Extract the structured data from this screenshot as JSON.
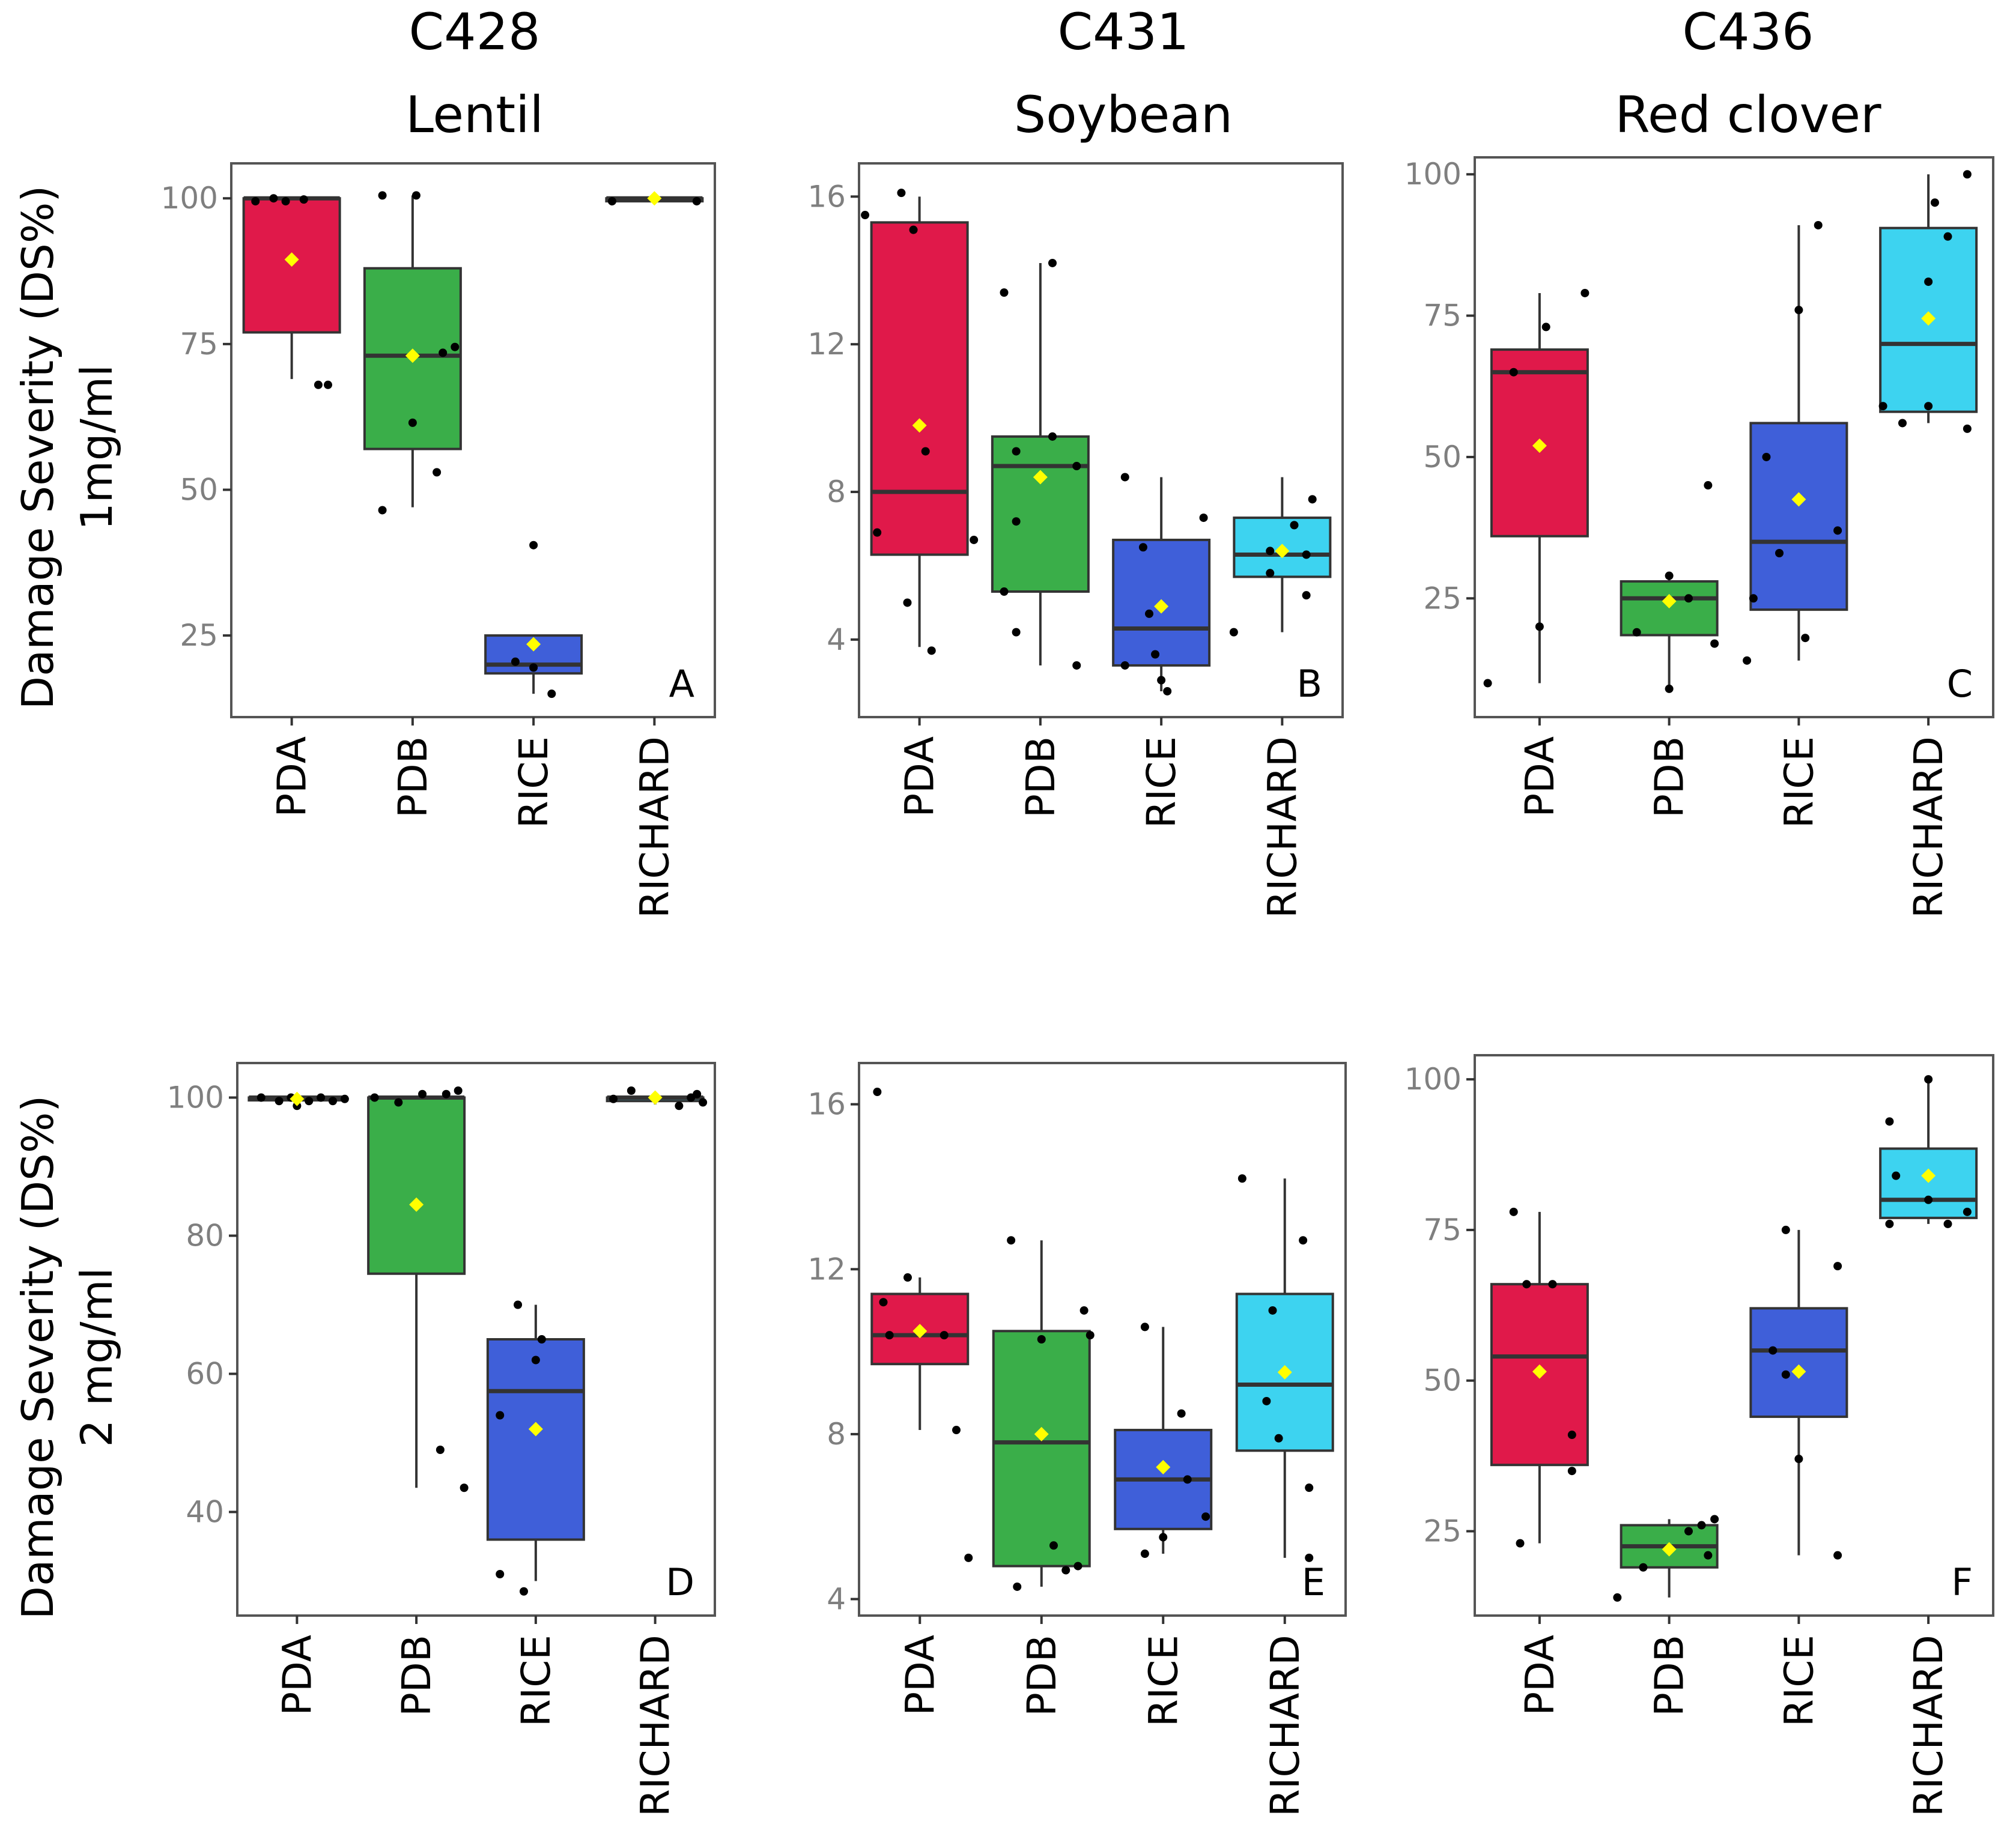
{
  "column_titles": [
    {
      "code": "C428",
      "host": "Lentil"
    },
    {
      "code": "C431",
      "host": "Soybean"
    },
    {
      "code": "C436",
      "host": "Red clover"
    }
  ],
  "row_labels": [
    {
      "line1": "Damage Severity (DS%)",
      "line2": "1mg/ml"
    },
    {
      "line1": "Damage Severity (DS%)",
      "line2": "2 mg/ml"
    }
  ],
  "colors": {
    "PDA": "#e0194a",
    "PDB": "#3aae49",
    "RICE": "#3f5fd9",
    "RICHARD": "#3dd3f0",
    "mean_marker": "#ffff00",
    "point": "#000000"
  },
  "chart_data": [
    {
      "type": "box",
      "panel": "A",
      "title": "C428 Lentil",
      "ylabel": "Damage Severity (DS%) 1mg/ml",
      "categories": [
        "PDA",
        "PDB",
        "RICE",
        "RICHARD"
      ],
      "ylim": [
        11,
        106
      ],
      "yticks": [
        25,
        50,
        75,
        100
      ],
      "boxes": [
        {
          "category": "PDA",
          "min": 69,
          "q1": 77,
          "median": 100,
          "q3": 100,
          "max": 100,
          "mean": 89.5,
          "points": [
            [
              -0.3,
              99.5
            ],
            [
              -0.15,
              100
            ],
            [
              -0.05,
              99.5
            ],
            [
              0.1,
              99.8
            ],
            [
              0.22,
              68
            ],
            [
              0.3,
              68
            ]
          ]
        },
        {
          "category": "PDB",
          "min": 47,
          "q1": 57,
          "median": 73,
          "q3": 88,
          "max": 100.5,
          "mean": 73,
          "points": [
            [
              -0.25,
              100.5
            ],
            [
              0.03,
              100.5
            ],
            [
              -0.25,
              46.5
            ],
            [
              0.0,
              61.5
            ],
            [
              0.2,
              53
            ],
            [
              0.25,
              73.5
            ],
            [
              0.35,
              74.5
            ]
          ]
        },
        {
          "category": "RICE",
          "min": 15,
          "q1": 18.5,
          "median": 20,
          "q3": 25,
          "max": 25,
          "mean": 23.5,
          "points": [
            [
              -0.15,
              20.5
            ],
            [
              0.0,
              40.5
            ],
            [
              0.0,
              19.5
            ],
            [
              0.15,
              15
            ]
          ]
        },
        {
          "category": "RICHARD",
          "min": 99.5,
          "q1": 99.5,
          "median": 100,
          "q3": 100,
          "max": 100,
          "mean": 100,
          "points": [
            [
              -0.35,
              99.5
            ],
            [
              0.0,
              100
            ],
            [
              0.35,
              99.5
            ]
          ]
        }
      ]
    },
    {
      "type": "box",
      "panel": "B",
      "title": "C431 Soybean",
      "ylabel": "Damage Severity (DS%) 1mg/ml",
      "categories": [
        "PDA",
        "PDB",
        "RICE",
        "RICHARD"
      ],
      "ylim": [
        1.9,
        16.9
      ],
      "yticks": [
        4,
        8,
        12,
        16
      ],
      "boxes": [
        {
          "category": "PDA",
          "min": 3.8,
          "q1": 6.3,
          "median": 8.0,
          "q3": 15.3,
          "max": 16.0,
          "mean": 9.8,
          "points": [
            [
              -0.45,
              15.5
            ],
            [
              -0.15,
              16.1
            ],
            [
              -0.05,
              15.1
            ],
            [
              -0.35,
              6.9
            ],
            [
              0.05,
              9.1
            ],
            [
              -0.1,
              5.0
            ],
            [
              0.1,
              3.7
            ],
            [
              0.45,
              6.7
            ]
          ]
        },
        {
          "category": "PDB",
          "min": 3.3,
          "q1": 5.3,
          "median": 8.7,
          "q3": 9.5,
          "max": 14.2,
          "mean": 8.4,
          "points": [
            [
              -0.3,
              13.4
            ],
            [
              0.1,
              14.2
            ],
            [
              -0.2,
              9.1
            ],
            [
              0.1,
              9.5
            ],
            [
              0.3,
              8.7
            ],
            [
              -0.2,
              7.2
            ],
            [
              -0.3,
              5.3
            ],
            [
              -0.2,
              4.2
            ],
            [
              0.3,
              3.3
            ]
          ]
        },
        {
          "category": "RICE",
          "min": 2.6,
          "q1": 3.3,
          "median": 4.3,
          "q3": 6.7,
          "max": 8.4,
          "mean": 4.9,
          "points": [
            [
              -0.3,
              8.4
            ],
            [
              -0.15,
              6.5
            ],
            [
              0.35,
              7.3
            ],
            [
              -0.1,
              4.7
            ],
            [
              -0.05,
              3.6
            ],
            [
              -0.3,
              3.3
            ],
            [
              0.0,
              2.9
            ],
            [
              0.05,
              2.6
            ]
          ]
        },
        {
          "category": "RICHARD",
          "min": 4.2,
          "q1": 5.7,
          "median": 6.3,
          "q3": 7.3,
          "max": 8.4,
          "mean": 6.4,
          "points": [
            [
              -0.4,
              4.2
            ],
            [
              -0.1,
              6.4
            ],
            [
              0.1,
              7.1
            ],
            [
              0.25,
              7.8
            ],
            [
              0.2,
              6.3
            ],
            [
              0.2,
              5.2
            ],
            [
              -0.1,
              5.8
            ]
          ]
        }
      ]
    },
    {
      "type": "box",
      "panel": "C",
      "title": "C436 Red clover",
      "ylabel": "",
      "categories": [
        "PDA",
        "PDB",
        "RICE",
        "RICHARD"
      ],
      "ylim": [
        4,
        103
      ],
      "yticks": [
        25,
        50,
        75,
        100
      ],
      "boxes": [
        {
          "category": "PDA",
          "min": 10,
          "q1": 36,
          "median": 65,
          "q3": 69,
          "max": 79,
          "mean": 52,
          "points": [
            [
              -0.4,
              10
            ],
            [
              -0.2,
              65
            ],
            [
              0.05,
              73
            ],
            [
              0.0,
              20
            ],
            [
              0.35,
              79
            ]
          ]
        },
        {
          "category": "PDB",
          "min": 9,
          "q1": 18.5,
          "median": 25,
          "q3": 28,
          "max": 29,
          "mean": 24.5,
          "points": [
            [
              -0.25,
              19
            ],
            [
              0.0,
              29
            ],
            [
              0.15,
              25
            ],
            [
              0.0,
              9
            ],
            [
              0.35,
              17
            ],
            [
              0.3,
              45
            ]
          ]
        },
        {
          "category": "RICE",
          "min": 14,
          "q1": 23,
          "median": 35,
          "q3": 56,
          "max": 91,
          "mean": 42.5,
          "points": [
            [
              -0.25,
              50
            ],
            [
              -0.4,
              14
            ],
            [
              -0.35,
              25
            ],
            [
              -0.15,
              33
            ],
            [
              0.0,
              76
            ],
            [
              0.05,
              18
            ],
            [
              0.15,
              91
            ],
            [
              0.3,
              37
            ]
          ]
        },
        {
          "category": "RICHARD",
          "min": 56,
          "q1": 58,
          "median": 70,
          "q3": 90.5,
          "max": 100,
          "mean": 74.5,
          "points": [
            [
              -0.35,
              59
            ],
            [
              -0.2,
              56
            ],
            [
              0.0,
              59
            ],
            [
              0.0,
              81
            ],
            [
              0.05,
              95
            ],
            [
              0.15,
              89
            ],
            [
              0.3,
              55
            ],
            [
              0.3,
              100
            ]
          ]
        }
      ]
    },
    {
      "type": "box",
      "panel": "D",
      "title": "C428 Lentil",
      "ylabel": "Damage Severity (DS%) 2 mg/ml",
      "categories": [
        "PDA",
        "PDB",
        "RICE",
        "RICHARD"
      ],
      "ylim": [
        25,
        105
      ],
      "yticks": [
        40,
        60,
        80,
        100
      ],
      "boxes": [
        {
          "category": "PDA",
          "min": 99,
          "q1": 99.6,
          "median": 100,
          "q3": 100,
          "max": 100,
          "mean": 99.8,
          "points": [
            [
              -0.3,
              100
            ],
            [
              -0.15,
              99.5
            ],
            [
              -0.05,
              100
            ],
            [
              0.0,
              98.8
            ],
            [
              0.1,
              99.5
            ],
            [
              0.2,
              100
            ],
            [
              0.3,
              99.5
            ],
            [
              0.4,
              99.8
            ]
          ]
        },
        {
          "category": "PDB",
          "min": 43.5,
          "q1": 74.5,
          "median": 100,
          "q3": 100,
          "max": 100,
          "mean": 84.5,
          "points": [
            [
              -0.35,
              100
            ],
            [
              -0.15,
              99.3
            ],
            [
              0.05,
              100.5
            ],
            [
              0.25,
              100.5
            ],
            [
              0.35,
              101
            ],
            [
              0.2,
              49
            ],
            [
              0.4,
              43.5
            ]
          ]
        },
        {
          "category": "RICE",
          "min": 30,
          "q1": 36,
          "median": 57.5,
          "q3": 65,
          "max": 70,
          "mean": 52,
          "points": [
            [
              -0.3,
              54
            ],
            [
              -0.15,
              70
            ],
            [
              0.0,
              62
            ],
            [
              0.05,
              65
            ],
            [
              -0.3,
              31
            ],
            [
              -0.1,
              28.5
            ]
          ]
        },
        {
          "category": "RICHARD",
          "min": 99,
          "q1": 99.5,
          "median": 100,
          "q3": 100,
          "max": 100.5,
          "mean": 100,
          "points": [
            [
              -0.35,
              99.8
            ],
            [
              -0.2,
              101
            ],
            [
              0.0,
              100
            ],
            [
              0.2,
              98.8
            ],
            [
              0.3,
              100
            ],
            [
              0.35,
              100.5
            ],
            [
              0.4,
              99.3
            ]
          ]
        }
      ]
    },
    {
      "type": "box",
      "panel": "E",
      "title": "C431 Soybean",
      "ylabel": "Damage Severity (DS%) 2 mg/ml",
      "categories": [
        "PDA",
        "PDB",
        "RICE",
        "RICHARD"
      ],
      "ylim": [
        3.6,
        17
      ],
      "yticks": [
        4,
        8,
        12,
        16
      ],
      "boxes": [
        {
          "category": "PDA",
          "min": 8.1,
          "q1": 9.7,
          "median": 10.4,
          "q3": 11.4,
          "max": 11.8,
          "mean": 10.5,
          "points": [
            [
              -0.35,
              16.3
            ],
            [
              -0.3,
              11.2
            ],
            [
              -0.1,
              11.8
            ],
            [
              -0.25,
              10.4
            ],
            [
              0.0,
              10.5
            ],
            [
              0.2,
              10.4
            ],
            [
              0.3,
              8.1
            ],
            [
              0.4,
              5.0
            ]
          ]
        },
        {
          "category": "PDB",
          "min": 4.3,
          "q1": 4.8,
          "median": 7.8,
          "q3": 10.5,
          "max": 12.7,
          "mean": 8.0,
          "points": [
            [
              -0.25,
              12.7
            ],
            [
              -0.2,
              4.3
            ],
            [
              0.0,
              10.3
            ],
            [
              0.1,
              5.3
            ],
            [
              0.2,
              4.7
            ],
            [
              0.35,
              11.0
            ],
            [
              0.4,
              10.4
            ],
            [
              0.3,
              4.8
            ]
          ]
        },
        {
          "category": "RICE",
          "min": 5.1,
          "q1": 5.7,
          "median": 6.9,
          "q3": 8.1,
          "max": 10.6,
          "mean": 7.2,
          "points": [
            [
              -0.15,
              10.6
            ],
            [
              -0.15,
              5.1
            ],
            [
              0.0,
              5.5
            ],
            [
              0.15,
              8.5
            ],
            [
              0.2,
              6.9
            ],
            [
              0.35,
              6.0
            ]
          ]
        },
        {
          "category": "RICHARD",
          "min": 5.0,
          "q1": 7.6,
          "median": 9.2,
          "q3": 11.4,
          "max": 14.2,
          "mean": 9.5,
          "points": [
            [
              -0.35,
              14.2
            ],
            [
              -0.15,
              8.8
            ],
            [
              -0.1,
              11.0
            ],
            [
              -0.05,
              7.9
            ],
            [
              0.15,
              12.7
            ],
            [
              0.2,
              6.7
            ],
            [
              0.2,
              5.0
            ]
          ]
        }
      ]
    },
    {
      "type": "box",
      "panel": "F",
      "title": "C436 Red clover",
      "ylabel": "",
      "categories": [
        "PDA",
        "PDB",
        "RICE",
        "RICHARD"
      ],
      "ylim": [
        11,
        104
      ],
      "yticks": [
        25,
        50,
        75,
        100
      ],
      "boxes": [
        {
          "category": "PDA",
          "min": 23,
          "q1": 36,
          "median": 54,
          "q3": 66,
          "max": 78,
          "mean": 51.5,
          "points": [
            [
              -0.2,
              78
            ],
            [
              -0.1,
              66
            ],
            [
              0.1,
              66
            ],
            [
              -0.15,
              23
            ],
            [
              0.25,
              41
            ],
            [
              0.25,
              35
            ]
          ]
        },
        {
          "category": "PDB",
          "min": 14,
          "q1": 19,
          "median": 22.5,
          "q3": 26,
          "max": 27,
          "mean": 22,
          "points": [
            [
              -0.4,
              14
            ],
            [
              -0.2,
              19
            ],
            [
              0.0,
              22
            ],
            [
              0.15,
              25
            ],
            [
              0.25,
              26
            ],
            [
              0.35,
              27
            ],
            [
              0.3,
              21
            ]
          ]
        },
        {
          "category": "RICE",
          "min": 21,
          "q1": 44,
          "median": 55,
          "q3": 62,
          "max": 75,
          "mean": 51.5,
          "points": [
            [
              -0.1,
              75
            ],
            [
              -0.2,
              55
            ],
            [
              -0.1,
              51
            ],
            [
              0.3,
              69
            ],
            [
              0.0,
              37
            ],
            [
              0.3,
              21
            ]
          ]
        },
        {
          "category": "RICHARD",
          "min": 76,
          "q1": 77,
          "median": 80,
          "q3": 88.5,
          "max": 100,
          "mean": 84,
          "points": [
            [
              -0.3,
              93
            ],
            [
              -0.3,
              76
            ],
            [
              -0.25,
              84
            ],
            [
              0.0,
              80
            ],
            [
              0.0,
              100
            ],
            [
              0.15,
              76
            ],
            [
              0.3,
              78
            ]
          ]
        }
      ]
    }
  ]
}
